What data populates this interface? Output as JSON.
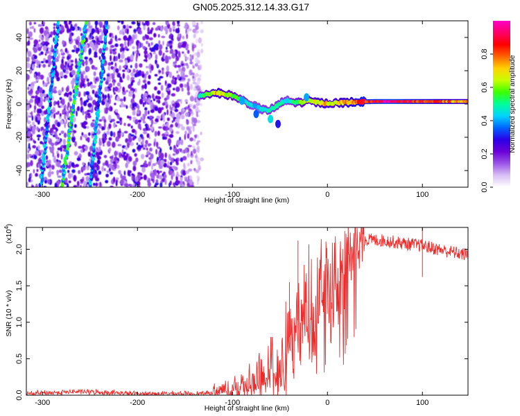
{
  "title": "GN05.2025.312.14.33.G17",
  "chart_data": [
    {
      "type": "heatmap",
      "xlabel": "Height of straight line (km)",
      "ylabel": "Frequency (Hz)",
      "xlim": [
        -317,
        148
      ],
      "ylim": [
        -50,
        50
      ],
      "x_ticks": [
        "-300",
        "-200",
        "-100",
        "0",
        "100"
      ],
      "x_tick_values": [
        -300,
        -200,
        -100,
        0,
        100
      ],
      "y_ticks": [
        "-40",
        "-20",
        "0",
        "20",
        "40"
      ],
      "y_tick_values": [
        -40,
        -20,
        0,
        20,
        40
      ],
      "colorbar": {
        "label": "Normalized spectral amplitude",
        "range": [
          0,
          1
        ],
        "ticks": [
          "0.0",
          "0.2",
          "0.4",
          "0.6",
          "0.8"
        ],
        "tick_values": [
          0,
          0.2,
          0.4,
          0.6,
          0.8
        ],
        "colors": [
          "#ffffff",
          "#d9bff5",
          "#9a55e6",
          "#6a00d8",
          "#2a00e6",
          "#0064ff",
          "#00d5ff",
          "#00ff99",
          "#3cff00",
          "#c8ff00",
          "#ffd200",
          "#ff6400",
          "#ff0000",
          "#ff0066",
          "#ff00c8"
        ]
      },
      "noise_region_x": [
        -317,
        -132
      ],
      "diagonal_tracks": [
        {
          "x_at_top": -283,
          "x_at_bottom": -302,
          "amplitude": 0.4
        },
        {
          "x_at_top": -254,
          "x_at_bottom": -280,
          "amplitude": 0.5
        },
        {
          "x_at_top": -232,
          "x_at_bottom": -250,
          "amplitude": 0.4
        }
      ],
      "signal_ridge": [
        {
          "x": -135,
          "f": 5,
          "amp": 0.5
        },
        {
          "x": -125,
          "f": 6,
          "amp": 0.6
        },
        {
          "x": -118,
          "f": 7,
          "amp": 0.75
        },
        {
          "x": -110,
          "f": 6,
          "amp": 0.7
        },
        {
          "x": -100,
          "f": 5,
          "amp": 0.6
        },
        {
          "x": -92,
          "f": 3,
          "amp": 0.55
        },
        {
          "x": -85,
          "f": 1,
          "amp": 0.5
        },
        {
          "x": -78,
          "f": -1,
          "amp": 0.45
        },
        {
          "x": -70,
          "f": -3,
          "amp": 0.45
        },
        {
          "x": -63,
          "f": -4,
          "amp": 0.5
        },
        {
          "x": -55,
          "f": -2,
          "amp": 0.5
        },
        {
          "x": -48,
          "f": 1,
          "amp": 0.5
        },
        {
          "x": -42,
          "f": 2,
          "amp": 0.45
        },
        {
          "x": -35,
          "f": 1,
          "amp": 0.55
        },
        {
          "x": -28,
          "f": 1,
          "amp": 0.6
        },
        {
          "x": -20,
          "f": 2,
          "amp": 0.7
        },
        {
          "x": -12,
          "f": 1,
          "amp": 0.7
        },
        {
          "x": -5,
          "f": 0.5,
          "amp": 0.75
        },
        {
          "x": 5,
          "f": 0.5,
          "amp": 0.7
        },
        {
          "x": 15,
          "f": 0.8,
          "amp": 0.75
        },
        {
          "x": 30,
          "f": 1.2,
          "amp": 0.85
        },
        {
          "x": 50,
          "f": 1.5,
          "amp": 0.95
        },
        {
          "x": 70,
          "f": 1.5,
          "amp": 1.0
        },
        {
          "x": 90,
          "f": 1.5,
          "amp": 0.9
        },
        {
          "x": 110,
          "f": 1.5,
          "amp": 0.85
        },
        {
          "x": 130,
          "f": 1.5,
          "amp": 0.8
        },
        {
          "x": 148,
          "f": 1.5,
          "amp": 0.75
        }
      ],
      "signal_blobs": [
        {
          "x": -60,
          "f": -9,
          "amp": 0.45
        },
        {
          "x": -75,
          "f": -6,
          "amp": 0.35
        },
        {
          "x": -90,
          "f": 2,
          "amp": 0.4
        },
        {
          "x": -52,
          "f": -12,
          "amp": 0.3
        },
        {
          "x": -22,
          "f": 4,
          "amp": 0.4
        }
      ]
    },
    {
      "type": "line",
      "xlabel": "Height of straight line (km)",
      "ylabel": "SNR (10 * v/v)",
      "y_scale_label": "(x10",
      "y_scale_exponent": "4",
      "xlim": [
        -317,
        148
      ],
      "ylim": [
        0,
        2.3
      ],
      "x_ticks": [
        "-300",
        "-200",
        "-100",
        "0",
        "100"
      ],
      "x_tick_values": [
        -300,
        -200,
        -100,
        0,
        100
      ],
      "y_ticks": [
        "0.0",
        "0.5",
        "1.0",
        "1.5",
        "2.0"
      ],
      "y_tick_values": [
        0,
        0.5,
        1.0,
        1.5,
        2.0
      ],
      "color": "#ee2b2b",
      "envelope": {
        "x": [
          -317,
          -260,
          -200,
          -130,
          -110,
          -90,
          -75,
          -65,
          -50,
          -40,
          -30,
          -20,
          -10,
          0,
          10,
          20,
          30,
          40,
          60,
          80,
          100,
          120,
          148
        ],
        "y": [
          0.02,
          0.05,
          0.02,
          0.02,
          0.05,
          0.12,
          0.22,
          0.3,
          0.45,
          0.8,
          1.05,
          1.2,
          1.35,
          1.55,
          1.75,
          1.95,
          2.08,
          2.13,
          2.12,
          2.08,
          2.05,
          1.99,
          1.92
        ]
      },
      "spikes": [
        {
          "x": -31,
          "y": 2.12
        },
        {
          "x": -40,
          "y": 1.55
        },
        {
          "x": 100,
          "y": 2.32
        },
        {
          "x": 100,
          "y": 1.62
        }
      ]
    }
  ]
}
